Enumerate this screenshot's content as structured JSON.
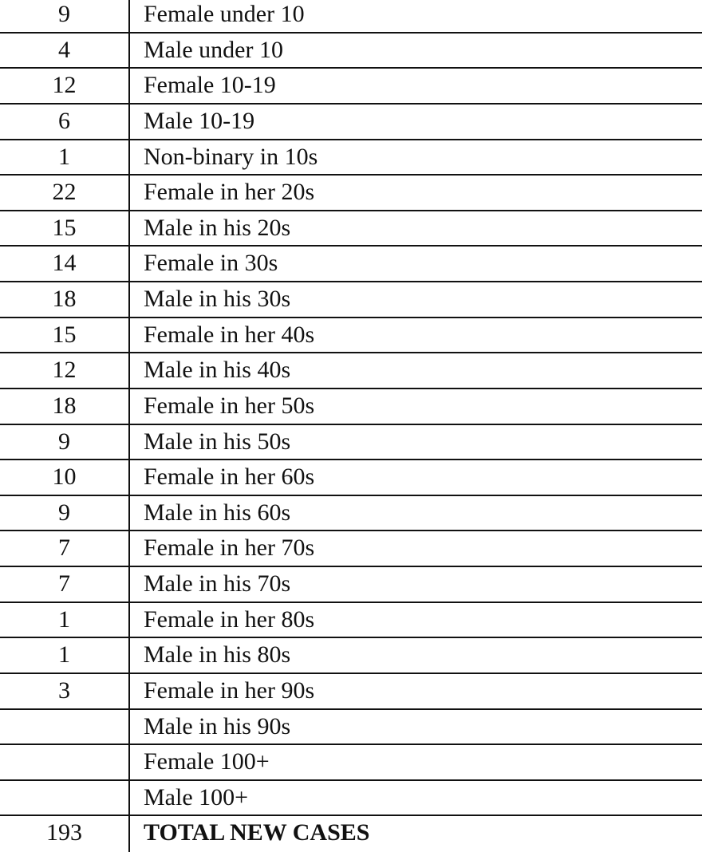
{
  "rows": [
    {
      "count": "9",
      "label": "Female under 10"
    },
    {
      "count": "4",
      "label": "Male under 10"
    },
    {
      "count": "12",
      "label": "Female 10-19"
    },
    {
      "count": "6",
      "label": "Male 10-19"
    },
    {
      "count": "1",
      "label": "Non-binary in 10s"
    },
    {
      "count": "22",
      "label": "Female in her 20s"
    },
    {
      "count": "15",
      "label": "Male in his 20s"
    },
    {
      "count": "14",
      "label": "Female in 30s"
    },
    {
      "count": "18",
      "label": "Male in his 30s"
    },
    {
      "count": "15",
      "label": "Female in her 40s"
    },
    {
      "count": "12",
      "label": "Male in his 40s"
    },
    {
      "count": "18",
      "label": "Female in her 50s"
    },
    {
      "count": "9",
      "label": "Male in his 50s"
    },
    {
      "count": "10",
      "label": "Female in her 60s"
    },
    {
      "count": "9",
      "label": "Male in his 60s"
    },
    {
      "count": "7",
      "label": "Female in her 70s"
    },
    {
      "count": "7",
      "label": "Male in his 70s"
    },
    {
      "count": "1",
      "label": "Female in her 80s"
    },
    {
      "count": "1",
      "label": "Male in his 80s"
    },
    {
      "count": "3",
      "label": "Female in her 90s"
    },
    {
      "count": "",
      "label": "Male in his 90s"
    },
    {
      "count": "",
      "label": "Female 100+"
    },
    {
      "count": "",
      "label": "Male 100+"
    }
  ],
  "total": {
    "count": "193",
    "label": "TOTAL NEW CASES"
  }
}
